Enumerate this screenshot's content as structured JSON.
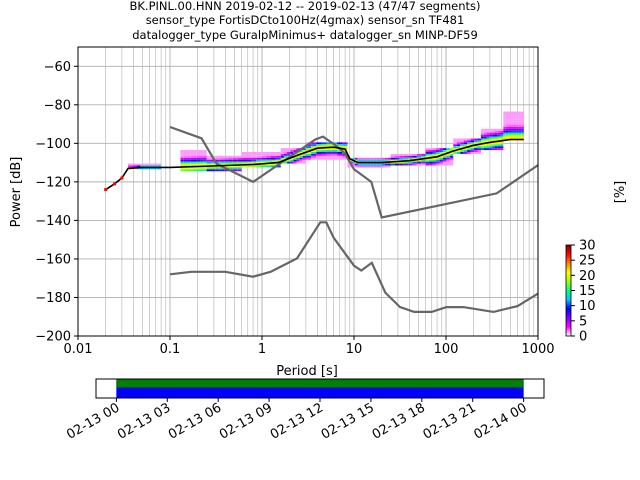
{
  "title": {
    "line1": "BK.PINL.00.HNN   2019-02-12 -- 2019-02-13  (47/47 segments)",
    "line2": "sensor_type FortisDCto100Hz(4gmax) sensor_sn TF481",
    "line3": "datalogger_type GuralpMinimus+ datalogger_sn MINP-DF59"
  },
  "chart_data": [
    {
      "type": "heatmap",
      "xlabel": "Period [s]",
      "ylabel": "Power [dB]",
      "x_scale": "log",
      "xlim": [
        0.01,
        1000
      ],
      "ylim": [
        -200,
        -50
      ],
      "x_ticks": [
        {
          "value": 0.01,
          "label": "0.01"
        },
        {
          "value": 0.1,
          "label": "0.1"
        },
        {
          "value": 1,
          "label": "1"
        },
        {
          "value": 10,
          "label": "10"
        },
        {
          "value": 100,
          "label": "100"
        },
        {
          "value": 1000,
          "label": "1000"
        }
      ],
      "y_ticks": [
        {
          "value": -60,
          "label": "−60"
        },
        {
          "value": -80,
          "label": "−80"
        },
        {
          "value": -100,
          "label": "−100"
        },
        {
          "value": -120,
          "label": "−120"
        },
        {
          "value": -140,
          "label": "−140"
        },
        {
          "value": -160,
          "label": "−160"
        },
        {
          "value": -180,
          "label": "−180"
        },
        {
          "value": -200,
          "label": "−200"
        }
      ],
      "grid": true,
      "colorbar": {
        "label": "[%]",
        "min": 0,
        "max": 30,
        "ticks": [
          {
            "value": 0,
            "label": "0"
          },
          {
            "value": 5,
            "label": "5"
          },
          {
            "value": 10,
            "label": "10"
          },
          {
            "value": 15,
            "label": "15"
          },
          {
            "value": 20,
            "label": "20"
          },
          {
            "value": 25,
            "label": "25"
          },
          {
            "value": 30,
            "label": "30"
          }
        ],
        "colors": [
          "#ffffff",
          "#ff00ff",
          "#7f00ff",
          "#0000ff",
          "#00c8ff",
          "#00ff80",
          "#a0ff00",
          "#ffff00",
          "#ff8000",
          "#ff0000",
          "#7f0000"
        ]
      },
      "new_high_noise_model": [
        [
          0.1,
          -91.5
        ],
        [
          0.22,
          -97.4
        ],
        [
          0.32,
          -110.5
        ],
        [
          0.8,
          -120
        ],
        [
          3.8,
          -98
        ],
        [
          4.6,
          -96.5
        ],
        [
          6.3,
          -101
        ],
        [
          7.9,
          -105
        ],
        [
          10,
          -113.5
        ],
        [
          15.4,
          -120
        ],
        [
          20,
          -138.5
        ],
        [
          354.8,
          -126
        ],
        [
          1000,
          -111.3
        ]
      ],
      "new_low_noise_model": [
        [
          0.1,
          -168
        ],
        [
          0.17,
          -166.7
        ],
        [
          0.4,
          -166.7
        ],
        [
          0.8,
          -169.2
        ],
        [
          1.24,
          -166.7
        ],
        [
          2.4,
          -159.7
        ],
        [
          4.3,
          -141
        ],
        [
          5,
          -141
        ],
        [
          6,
          -149
        ],
        [
          10,
          -163.5
        ],
        [
          12,
          -166
        ],
        [
          15.6,
          -162
        ],
        [
          21.9,
          -177.5
        ],
        [
          31.6,
          -185
        ],
        [
          45,
          -187.5
        ],
        [
          70,
          -187.5
        ],
        [
          101,
          -185
        ],
        [
          154,
          -185
        ],
        [
          328,
          -187.5
        ],
        [
          600,
          -184.5
        ],
        [
          1000,
          -178
        ]
      ],
      "mean_psd": [
        [
          0.02,
          -124
        ],
        [
          0.025,
          -121
        ],
        [
          0.03,
          -118
        ],
        [
          0.035,
          -113
        ],
        [
          0.05,
          -112.5
        ],
        [
          0.1,
          -112.5
        ],
        [
          0.2,
          -112
        ],
        [
          0.4,
          -111.5
        ],
        [
          0.8,
          -111
        ],
        [
          1.5,
          -110
        ],
        [
          2.5,
          -106
        ],
        [
          4,
          -102.5
        ],
        [
          6,
          -102
        ],
        [
          8,
          -103
        ],
        [
          9,
          -108
        ],
        [
          11,
          -110
        ],
        [
          20,
          -110
        ],
        [
          40,
          -109
        ],
        [
          80,
          -107
        ],
        [
          120,
          -104
        ],
        [
          200,
          -101
        ],
        [
          300,
          -99.5
        ],
        [
          500,
          -98
        ],
        [
          700,
          -98
        ]
      ],
      "psd_spread": [
        {
          "x": [
            0.035,
            0.08
          ],
          "y": [
            -113,
            -111
          ]
        },
        {
          "x": [
            0.13,
            0.25
          ],
          "y": [
            -114,
            -104
          ]
        },
        {
          "x": [
            0.25,
            0.6
          ],
          "y": [
            -114,
            -107
          ]
        },
        {
          "x": [
            0.6,
            1.6
          ],
          "y": [
            -112,
            -105
          ]
        },
        {
          "x": [
            1.6,
            3
          ],
          "y": [
            -110,
            -103
          ]
        },
        {
          "x": [
            3,
            8.5
          ],
          "y": [
            -108,
            -100
          ]
        },
        {
          "x": [
            8.5,
            14
          ],
          "y": [
            -112,
            -108
          ]
        },
        {
          "x": [
            14,
            25
          ],
          "y": [
            -112,
            -108
          ]
        },
        {
          "x": [
            25,
            60
          ],
          "y": [
            -111,
            -106
          ]
        },
        {
          "x": [
            60,
            120
          ],
          "y": [
            -111,
            -103
          ]
        },
        {
          "x": [
            120,
            240
          ],
          "y": [
            -105,
            -98
          ]
        },
        {
          "x": [
            240,
            420
          ],
          "y": [
            -103,
            -93
          ]
        },
        {
          "x": [
            420,
            700
          ],
          "y": [
            -98,
            -84
          ]
        }
      ]
    },
    {
      "type": "timeline",
      "x_ticks": [
        "02-13 00",
        "02-13 03",
        "02-13 06",
        "02-13 09",
        "02-13 12",
        "02-13 15",
        "02-13 18",
        "02-13 21",
        "02-14 00"
      ],
      "x_range_hours": [
        -1.2,
        25.2
      ],
      "data_coverage_hours": [
        0,
        24
      ],
      "gap_free_hours": [
        0,
        24
      ],
      "colors": {
        "coverage": "#0000ff",
        "gap_free": "#008000"
      }
    }
  ]
}
